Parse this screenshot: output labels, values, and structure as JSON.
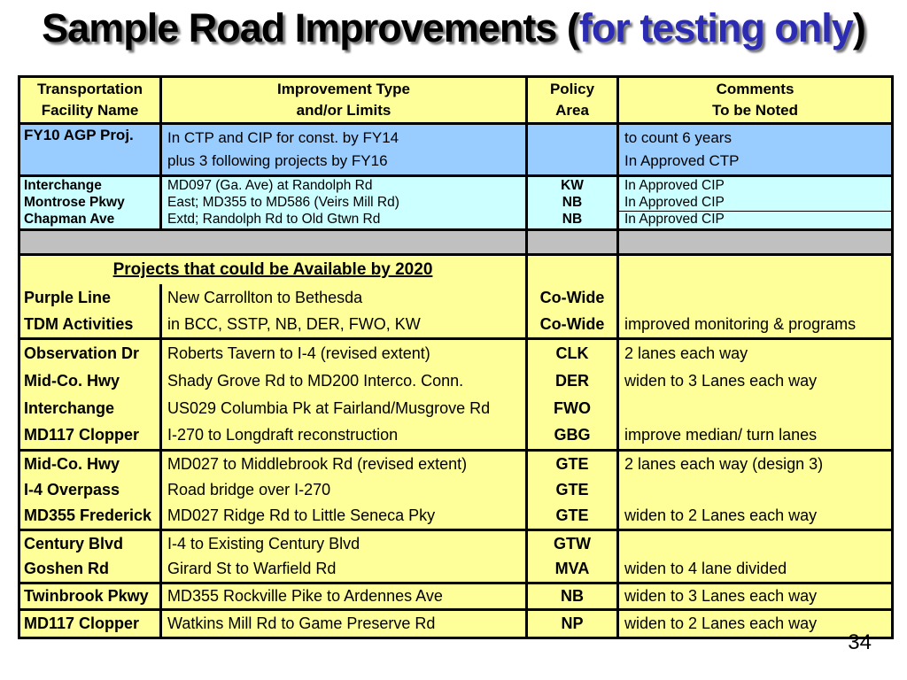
{
  "title": {
    "text_black": "Sample Road Improvements (",
    "text_blue": "for testing only",
    "text_close": ")"
  },
  "page_number": "34",
  "colors": {
    "header_bg": "#FFFF99",
    "approved_block_bg": "#99CCFF",
    "cip_block_bg": "#CCFFFF",
    "divider_bg": "#C0C0C0",
    "body_bg": "#FFFF99",
    "title_accent_blue": "#2B2BB4",
    "border": "#000000"
  },
  "table": {
    "header": {
      "col1": "Transportation\nFacility Name",
      "col2": "Improvement Type\nand/or Limits",
      "col3": "Policy\nArea",
      "col4": "Comments\nTo be Noted"
    },
    "blue_block": {
      "facility": "FY10 AGP Proj.",
      "improvement": "In CTP and CIP for const. by FY14\nplus 3 following projects by FY16",
      "policy": "",
      "comments": "to count 6 years\nIn Approved CTP"
    },
    "cyan_rows": [
      {
        "facility": "Interchange",
        "improvement": "MD097 (Ga. Ave) at Randolph Rd",
        "policy": "KW",
        "comments": "In Approved CIP"
      },
      {
        "facility": "Montrose Pkwy",
        "improvement": "East; MD355 to MD586 (Veirs Mill Rd)",
        "policy": "NB",
        "comments": "In Approved CIP"
      },
      {
        "facility": "Chapman Ave",
        "improvement": "Extd; Randolph Rd to Old Gtwn Rd",
        "policy": "NB",
        "comments": "In Approved CIP"
      }
    ],
    "section_header": "Projects that could be Available by 2020",
    "yellow_blocks": [
      {
        "rows": [
          {
            "facility": "Purple Line",
            "improvement": "New Carrollton to Bethesda",
            "policy": "Co-Wide",
            "comments": ""
          },
          {
            "facility": "TDM Activities",
            "improvement": "in BCC, SSTP, NB, DER, FWO, KW",
            "policy": "Co-Wide",
            "comments": "improved monitoring & programs"
          }
        ]
      },
      {
        "rows": [
          {
            "facility": "Observation Dr",
            "improvement": "Roberts Tavern to I-4 (revised extent)",
            "policy": "CLK",
            "comments": "2 lanes each way"
          },
          {
            "facility": "Mid-Co. Hwy",
            "improvement": "Shady Grove Rd to MD200 Interco. Conn.",
            "policy": "DER",
            "comments": "widen to 3 Lanes each way"
          },
          {
            "facility": "Interchange",
            "improvement": "US029 Columbia Pk at Fairland/Musgrove Rd",
            "policy": "FWO",
            "comments": ""
          },
          {
            "facility": "MD117 Clopper",
            "improvement": "I-270 to Longdraft reconstruction",
            "policy": "GBG",
            "comments": "improve median/ turn lanes"
          }
        ]
      },
      {
        "rows": [
          {
            "facility": "Mid-Co. Hwy",
            "improvement": "MD027 to Middlebrook Rd (revised extent)",
            "policy": "GTE",
            "comments": "2 lanes each way (design 3)"
          },
          {
            "facility": "I-4 Overpass",
            "improvement": "Road bridge over I-270",
            "policy": "GTE",
            "comments": ""
          },
          {
            "facility": "MD355 Frederick",
            "improvement": "MD027 Ridge Rd to Little Seneca Pky",
            "policy": "GTE",
            "comments": "widen to 2 Lanes each way"
          }
        ]
      },
      {
        "rows": [
          {
            "facility": "Century Blvd",
            "improvement": "I-4 to Existing Century Blvd",
            "policy": "GTW",
            "comments": ""
          },
          {
            "facility": "Goshen Rd",
            "improvement": "Girard St to Warfield Rd",
            "policy": "MVA",
            "comments": "widen to 4 lane divided"
          }
        ]
      },
      {
        "rows": [
          {
            "facility": "Twinbrook Pkwy",
            "improvement": "MD355 Rockville Pike to Ardennes Ave",
            "policy": "NB",
            "comments": "widen to 3 Lanes each way"
          }
        ]
      },
      {
        "rows": [
          {
            "facility": "MD117 Clopper",
            "improvement": "Watkins Mill Rd to Game Preserve Rd",
            "policy": "NP",
            "comments": "widen to 2 Lanes each way"
          }
        ]
      }
    ]
  }
}
